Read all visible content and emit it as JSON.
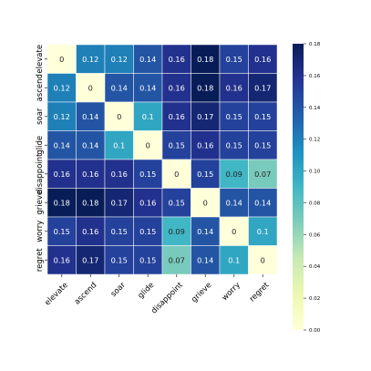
{
  "chart_data": {
    "type": "heatmap",
    "title": "",
    "xlabel": "",
    "ylabel": "",
    "categories_x": [
      "elevate",
      "ascend",
      "soar",
      "glide",
      "disappoint",
      "grieve",
      "worry",
      "regret"
    ],
    "categories_y": [
      "elevate",
      "ascend",
      "soar",
      "glide",
      "disappoint",
      "grieve",
      "worry",
      "regret"
    ],
    "values": [
      [
        0,
        0.12,
        0.12,
        0.14,
        0.16,
        0.18,
        0.15,
        0.16
      ],
      [
        0.12,
        0,
        0.14,
        0.14,
        0.16,
        0.18,
        0.16,
        0.17
      ],
      [
        0.12,
        0.14,
        0,
        0.1,
        0.16,
        0.17,
        0.15,
        0.15
      ],
      [
        0.14,
        0.14,
        0.1,
        0,
        0.15,
        0.16,
        0.15,
        0.15
      ],
      [
        0.16,
        0.16,
        0.16,
        0.15,
        0,
        0.15,
        0.09,
        0.07
      ],
      [
        0.18,
        0.18,
        0.17,
        0.16,
        0.15,
        0,
        0.14,
        0.14
      ],
      [
        0.15,
        0.16,
        0.15,
        0.15,
        0.09,
        0.14,
        0,
        0.1
      ],
      [
        0.16,
        0.17,
        0.15,
        0.15,
        0.07,
        0.14,
        0.1,
        0
      ]
    ],
    "colorbar": {
      "min": 0,
      "max": 0.18,
      "ticks": [
        "0.00",
        "0.02",
        "0.04",
        "0.06",
        "0.08",
        "0.10",
        "0.12",
        "0.14",
        "0.16",
        "0.18"
      ]
    },
    "colormap": "YlGnBu",
    "annotations": true
  }
}
